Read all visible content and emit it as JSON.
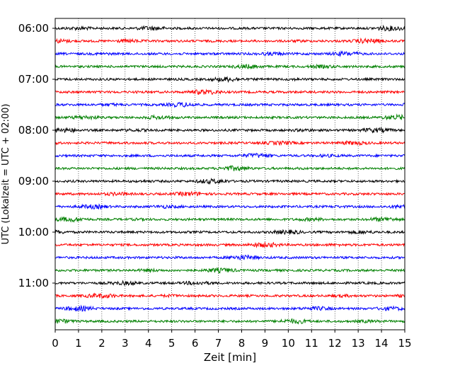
{
  "chart_data": {
    "type": "line",
    "title": "",
    "xlabel": "Zeit  [min]",
    "ylabel": "UTC (Lokalzeit = UTC + 02:00)",
    "xlim": [
      0,
      15
    ],
    "x_ticks": [
      0,
      1,
      2,
      3,
      4,
      5,
      6,
      7,
      8,
      9,
      10,
      11,
      12,
      13,
      14,
      15
    ],
    "y_tick_labels": [
      "06:00",
      "07:00",
      "08:00",
      "09:00",
      "10:00",
      "11:00"
    ],
    "grid": "vertical dotted at each minute",
    "legend": "none",
    "trace_colors": [
      "#000000",
      "#ff0000",
      "#0000ff",
      "#008000"
    ],
    "traces": [
      {
        "start": "06:00",
        "color": "#000000"
      },
      {
        "start": "06:15",
        "color": "#ff0000"
      },
      {
        "start": "06:30",
        "color": "#0000ff"
      },
      {
        "start": "06:45",
        "color": "#008000"
      },
      {
        "start": "07:00",
        "color": "#000000"
      },
      {
        "start": "07:15",
        "color": "#ff0000"
      },
      {
        "start": "07:30",
        "color": "#0000ff"
      },
      {
        "start": "07:45",
        "color": "#008000"
      },
      {
        "start": "08:00",
        "color": "#000000"
      },
      {
        "start": "08:15",
        "color": "#ff0000"
      },
      {
        "start": "08:30",
        "color": "#0000ff"
      },
      {
        "start": "08:45",
        "color": "#008000"
      },
      {
        "start": "09:00",
        "color": "#000000"
      },
      {
        "start": "09:15",
        "color": "#ff0000"
      },
      {
        "start": "09:30",
        "color": "#0000ff"
      },
      {
        "start": "09:45",
        "color": "#008000"
      },
      {
        "start": "10:00",
        "color": "#000000"
      },
      {
        "start": "10:15",
        "color": "#ff0000"
      },
      {
        "start": "10:30",
        "color": "#0000ff"
      },
      {
        "start": "10:45",
        "color": "#008000"
      },
      {
        "start": "11:00",
        "color": "#000000"
      },
      {
        "start": "11:15",
        "color": "#ff0000"
      },
      {
        "start": "11:30",
        "color": "#0000ff"
      },
      {
        "start": "11:45",
        "color": "#008000"
      }
    ]
  }
}
